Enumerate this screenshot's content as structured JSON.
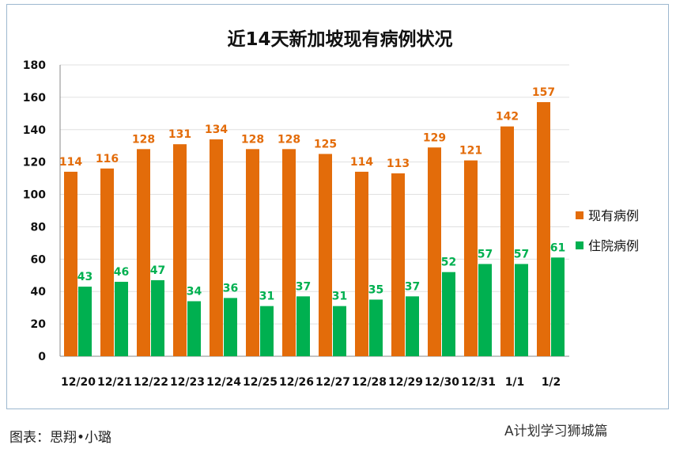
{
  "chart_data": {
    "type": "bar",
    "title": "近14天新加坡现有病例状况",
    "categories": [
      "12/20",
      "12/21",
      "12/22",
      "12/23",
      "12/24",
      "12/25",
      "12/26",
      "12/27",
      "12/28",
      "12/29",
      "12/30",
      "12/31",
      "1/1",
      "1/2"
    ],
    "series": [
      {
        "name": "现有病例",
        "color": "#e36c0a",
        "values": [
          114,
          116,
          128,
          131,
          134,
          128,
          128,
          125,
          114,
          113,
          129,
          121,
          142,
          157
        ]
      },
      {
        "name": "住院病例",
        "color": "#00b050",
        "values": [
          43,
          46,
          47,
          34,
          36,
          31,
          37,
          31,
          35,
          37,
          52,
          57,
          57,
          61
        ]
      }
    ],
    "ylim": [
      0,
      180
    ],
    "yticks": [
      0,
      20,
      40,
      60,
      80,
      100,
      120,
      140,
      160,
      180
    ],
    "grid": true,
    "legend": "right"
  },
  "footer": "图表：思翔•小璐",
  "watermark": "A计划学习狮城篇"
}
